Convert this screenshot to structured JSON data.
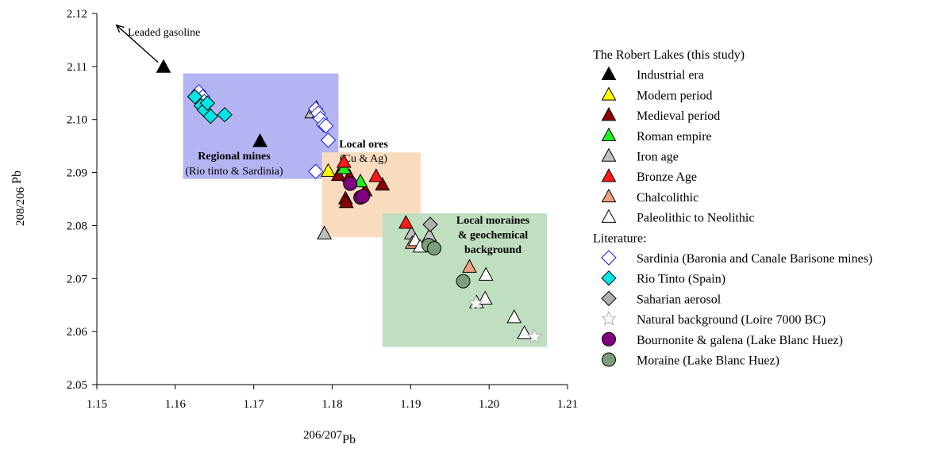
{
  "chart_data": {
    "type": "scatter",
    "xlabel": "206/207",
    "xlabel_sub": "Pb",
    "ylabel": "208/206",
    "ylabel_sub": "Pb",
    "xlim": [
      1.15,
      1.21
    ],
    "ylim": [
      2.05,
      2.12
    ],
    "x_ticks": [
      "1.15",
      "1.16",
      "1.17",
      "1.18",
      "1.19",
      "1.20",
      "1.21"
    ],
    "y_ticks": [
      "2.05",
      "2.06",
      "2.07",
      "2.08",
      "2.09",
      "2.10",
      "2.11",
      "2.12"
    ],
    "grid": false,
    "legend_position": "right",
    "regions": [
      {
        "name": "regional",
        "x": [
          1.161,
          1.1808
        ],
        "y": [
          2.0888,
          2.1087
        ],
        "color": "#b4b4f2",
        "title": "Regional mines",
        "subtitle": "(Rio tinto & Sardinia)"
      },
      {
        "name": "local-ores",
        "x": [
          1.1787,
          1.1913
        ],
        "y": [
          2.0778,
          2.0938
        ],
        "color": "#f9dcc0",
        "title": "Local ores",
        "subtitle": "(Cu & Ag)"
      },
      {
        "name": "moraines",
        "x": [
          1.1864,
          1.2074
        ],
        "y": [
          2.0571,
          2.0823
        ],
        "color": "#c0dfc0",
        "title_lines": [
          "Local moraines",
          "& geochemical",
          "background"
        ]
      }
    ],
    "annotation": {
      "text": "Leaded gasoline",
      "arrow_from": [
        1.1578,
        2.1108
      ],
      "arrow_to": [
        1.1525,
        2.1178
      ]
    },
    "legend_groups": [
      {
        "header": "The Robert Lakes (this study)",
        "items": [
          0,
          1,
          2,
          3,
          4,
          5,
          6,
          7
        ]
      },
      {
        "header": "Literature:",
        "items": [
          8,
          9,
          10,
          11,
          12,
          13
        ]
      }
    ],
    "series": [
      {
        "name": "Industrial era",
        "marker": "triangle",
        "fill": "#000000",
        "stroke": "#000000",
        "points": [
          [
            1.1585,
            2.1099
          ],
          [
            1.1708,
            2.0959
          ]
        ]
      },
      {
        "name": "Modern period",
        "marker": "triangle",
        "fill": "#ffff00",
        "stroke": "#000000",
        "points": [
          [
            1.1795,
            2.0903
          ]
        ]
      },
      {
        "name": "Medieval period",
        "marker": "triangle",
        "fill": "#8b0000",
        "stroke": "#000000",
        "points": [
          [
            1.1808,
            2.0895
          ],
          [
            1.1817,
            2.0851
          ],
          [
            1.1818,
            2.0844
          ],
          [
            1.1822,
            2.0893
          ],
          [
            1.1842,
            2.0866
          ],
          [
            1.1864,
            2.0877
          ]
        ]
      },
      {
        "name": "Roman empire",
        "marker": "triangle",
        "fill": "#22ee22",
        "stroke": "#000000",
        "points": [
          [
            1.1815,
            2.0908
          ],
          [
            1.1836,
            2.0883
          ]
        ]
      },
      {
        "name": "Iron age",
        "marker": "triangle",
        "fill": "#c0c0c0",
        "stroke": "#000000",
        "points": [
          [
            1.1774,
            2.1013
          ],
          [
            1.178,
            2.1022
          ],
          [
            1.1783,
            2.1013
          ],
          [
            1.179,
            2.0785
          ],
          [
            1.1901,
            2.0785
          ],
          [
            1.1924,
            2.0781
          ]
        ]
      },
      {
        "name": "Bronze Age",
        "marker": "triangle",
        "fill": "#ff1a1a",
        "stroke": "#000000",
        "points": [
          [
            1.1815,
            2.092
          ],
          [
            1.1856,
            2.0893
          ],
          [
            1.1894,
            2.0805
          ]
        ]
      },
      {
        "name": "Chalcolithic",
        "marker": "triangle",
        "fill": "#f0a080",
        "stroke": "#000000",
        "points": [
          [
            1.1902,
            2.0767
          ],
          [
            1.1975,
            2.0722
          ]
        ]
      },
      {
        "name": "Paleolithic to Neolithic",
        "marker": "triangle",
        "fill": "#ffffff",
        "stroke": "#000000",
        "points": [
          [
            1.1906,
            2.0772
          ],
          [
            1.1912,
            2.076
          ],
          [
            1.1984,
            2.0655
          ],
          [
            1.1995,
            2.0662
          ],
          [
            1.1996,
            2.0707
          ],
          [
            1.2032,
            2.0627
          ],
          [
            1.2045,
            2.0597
          ]
        ]
      },
      {
        "name": "Sardinia (Baronia and Canale Barisone mines)",
        "marker": "diamond",
        "fill": "#ffffff",
        "stroke": "#1c1ce0",
        "points": [
          [
            1.163,
            2.1052
          ],
          [
            1.1635,
            2.1043
          ],
          [
            1.1637,
            2.1034
          ],
          [
            1.1779,
            2.102
          ],
          [
            1.1782,
            2.1012
          ],
          [
            1.1785,
            2.1002
          ],
          [
            1.1789,
            2.099
          ],
          [
            1.1792,
            2.0988
          ],
          [
            1.1795,
            2.0961
          ],
          [
            1.1779,
            2.0902
          ]
        ]
      },
      {
        "name": "Rio Tinto (Spain)",
        "marker": "diamond",
        "fill": "#00e5e5",
        "stroke": "#000000",
        "points": [
          [
            1.1625,
            2.1043
          ],
          [
            1.1633,
            2.1026
          ],
          [
            1.1637,
            2.1018
          ],
          [
            1.1641,
            2.1031
          ],
          [
            1.1645,
            2.1006
          ],
          [
            1.1663,
            2.1009
          ]
        ]
      },
      {
        "name": "Saharian aerosol",
        "marker": "diamond",
        "fill": "#b0b0b0",
        "stroke": "#000000",
        "points": [
          [
            1.1925,
            2.0802
          ]
        ]
      },
      {
        "name": "Natural background (Loire 7000 BC)",
        "marker": "star",
        "fill": "#ffffff",
        "stroke": "#b0b0b0",
        "points": [
          [
            1.1983,
            2.0653
          ],
          [
            1.2058,
            2.059
          ]
        ]
      },
      {
        "name": "Bournonite & galena (Lake Blanc Huez)",
        "marker": "circle",
        "fill": "#800080",
        "stroke": "#000000",
        "points": [
          [
            1.1823,
            2.0879
          ],
          [
            1.1836,
            2.0853
          ],
          [
            1.1839,
            2.0855
          ]
        ]
      },
      {
        "name": "Moraine (Lake Blanc Huez)",
        "marker": "circle",
        "fill": "#7a9e7a",
        "stroke": "#000000",
        "points": [
          [
            1.1923,
            2.0763
          ],
          [
            1.193,
            2.0757
          ],
          [
            1.1967,
            2.0695
          ]
        ]
      }
    ]
  }
}
